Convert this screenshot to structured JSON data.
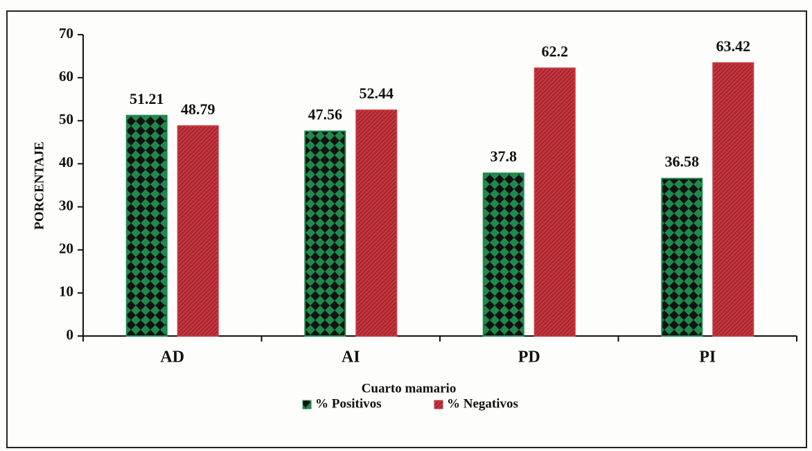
{
  "chart_data": {
    "type": "bar",
    "x_label": "Cuarto mamario",
    "y_label": "PORCENTAJE",
    "categories": [
      "AD",
      "AI",
      "PD",
      "PI"
    ],
    "series": [
      {
        "name": "% Positivos",
        "color": "#1f8a4c",
        "values": [
          51.21,
          47.56,
          37.8,
          36.58
        ]
      },
      {
        "name": "% Negativos",
        "color": "#c8363f",
        "values": [
          48.79,
          52.44,
          62.2,
          63.42
        ]
      }
    ],
    "ylim": [
      0,
      70
    ],
    "yticks": [
      0,
      10,
      20,
      30,
      40,
      50,
      60,
      70
    ],
    "legend": "bottom"
  }
}
